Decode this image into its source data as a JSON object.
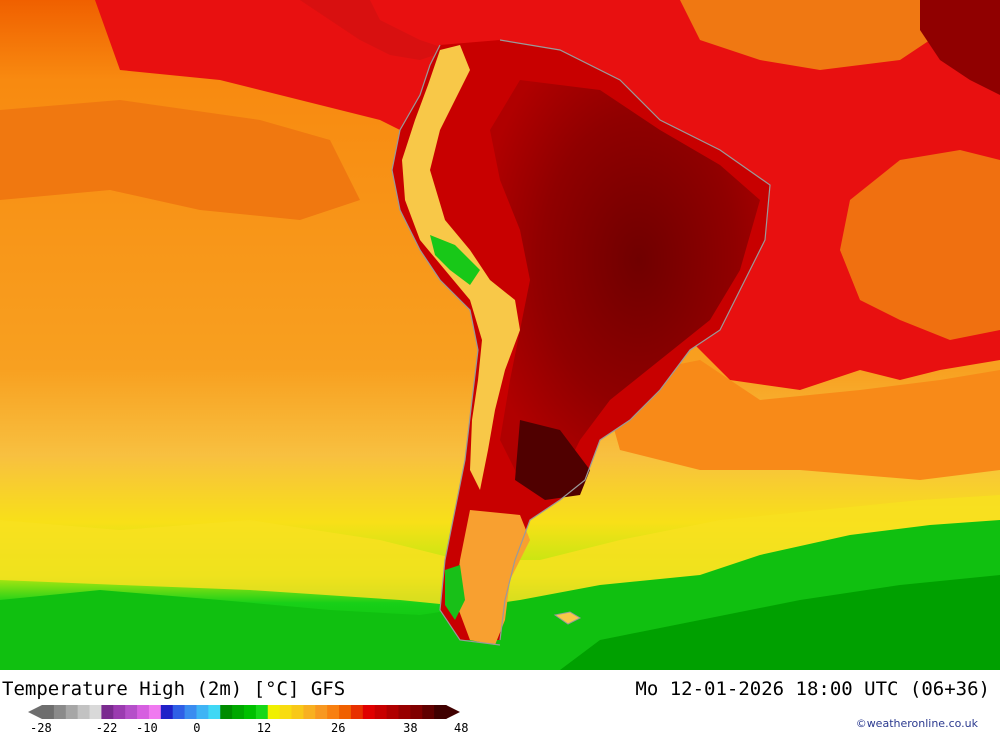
{
  "title": {
    "left": "Temperature High (2m) [°C] GFS",
    "right": "Mo 12-01-2026 18:00 UTC (06+36)"
  },
  "credit": "©weatheronline.co.uk",
  "legend": {
    "unit": "°C",
    "tick_labels": [
      "-28",
      "-22",
      "-10",
      "0",
      "12",
      "26",
      "38",
      "48"
    ],
    "colors": [
      "#6e6e6e",
      "#8a8a8a",
      "#a6a6a6",
      "#c2c2c2",
      "#d9d9d9",
      "#7a2b8f",
      "#9b3bb0",
      "#b54fc9",
      "#d65fe0",
      "#f07af0",
      "#2020c8",
      "#2f5fe6",
      "#3a8cf0",
      "#3fb4f5",
      "#40d8f5",
      "#008c00",
      "#00a800",
      "#00c000",
      "#18d818",
      "#f0f000",
      "#f8dc10",
      "#f8c818",
      "#f8b020",
      "#f89820",
      "#f88010",
      "#f06000",
      "#e83000",
      "#e00000",
      "#c80000",
      "#b00000",
      "#980000",
      "#800000",
      "#600000",
      "#400000"
    ]
  },
  "regions": {
    "pacific_ocean": {
      "color": "#f89a18"
    },
    "atlantic_tropics": {
      "color": "#e82010"
    },
    "south_cold_band": {
      "color": "#10c810"
    },
    "continent_hot_core": {
      "color": "#8a0000"
    },
    "andes_cool": {
      "color": "#f8d848"
    }
  }
}
